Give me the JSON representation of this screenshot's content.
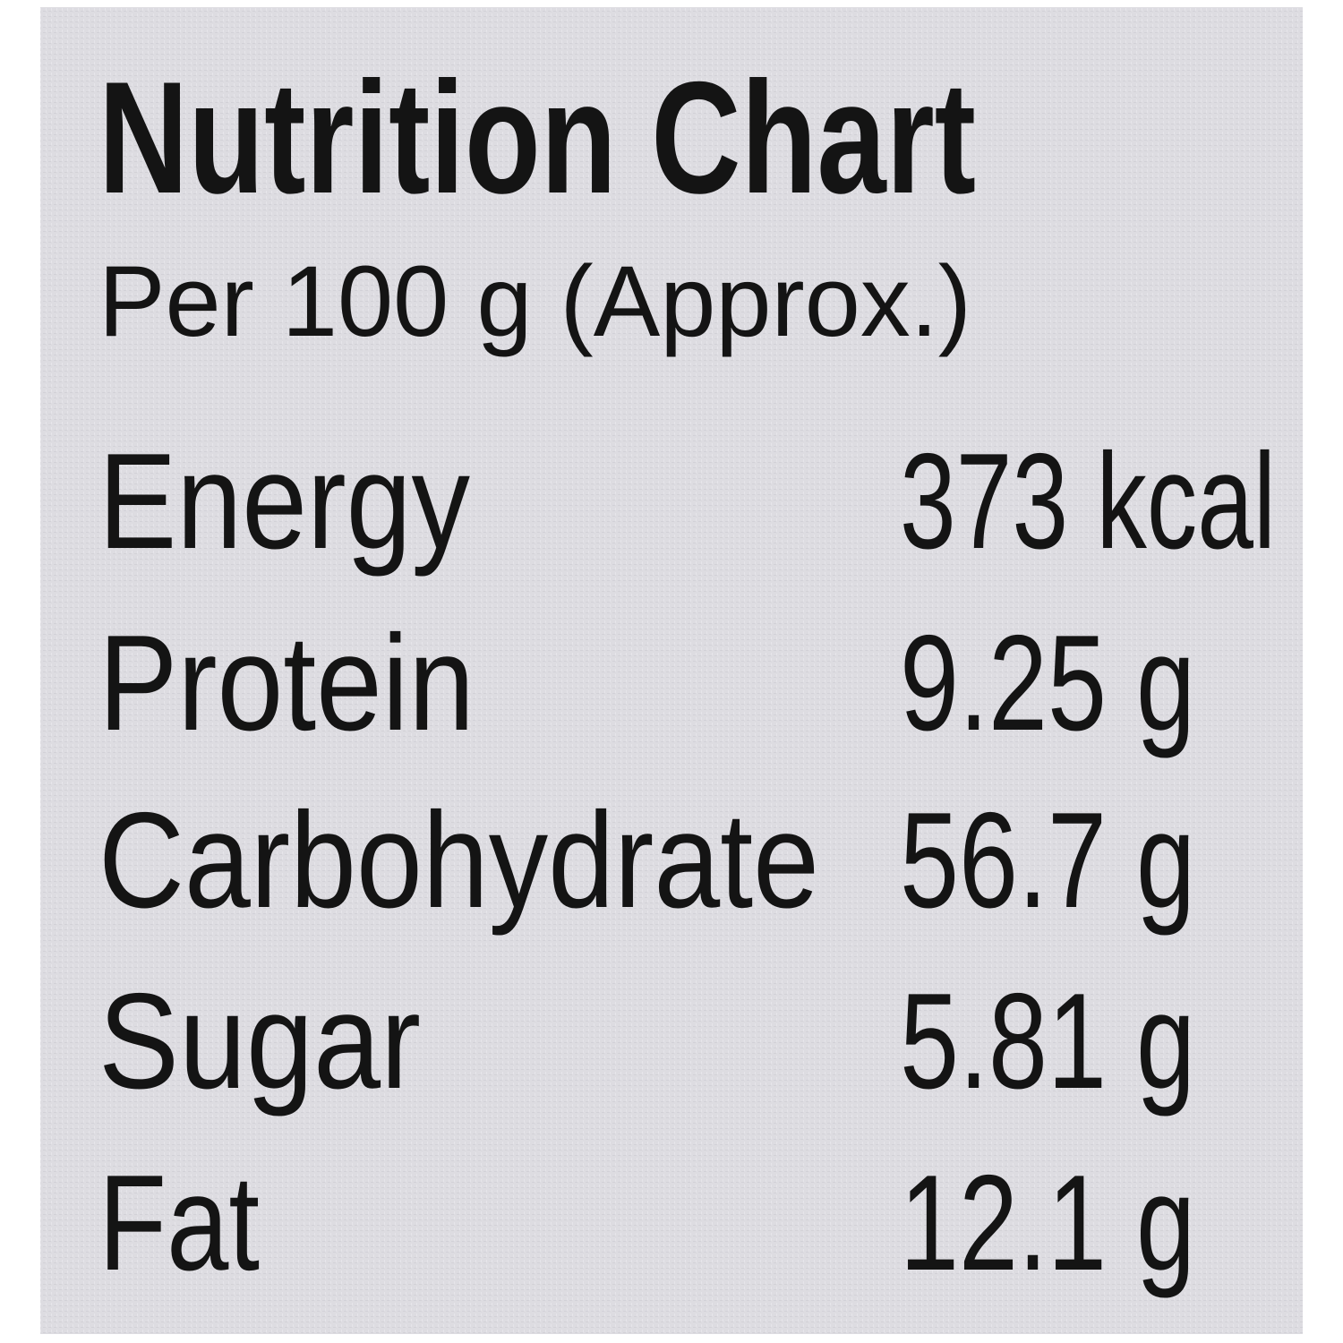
{
  "header": {
    "title": "Nutrition Chart",
    "subtitle": "Per 100 g (Approx.)"
  },
  "table": {
    "rows": [
      [
        "Energy",
        "373 kcal"
      ],
      [
        "Protein",
        "9.25 g"
      ],
      [
        "Carbohydrate",
        "56.7 g"
      ],
      [
        "Sugar",
        "5.81 g"
      ],
      [
        "Fat",
        "12.1 g"
      ]
    ]
  }
}
